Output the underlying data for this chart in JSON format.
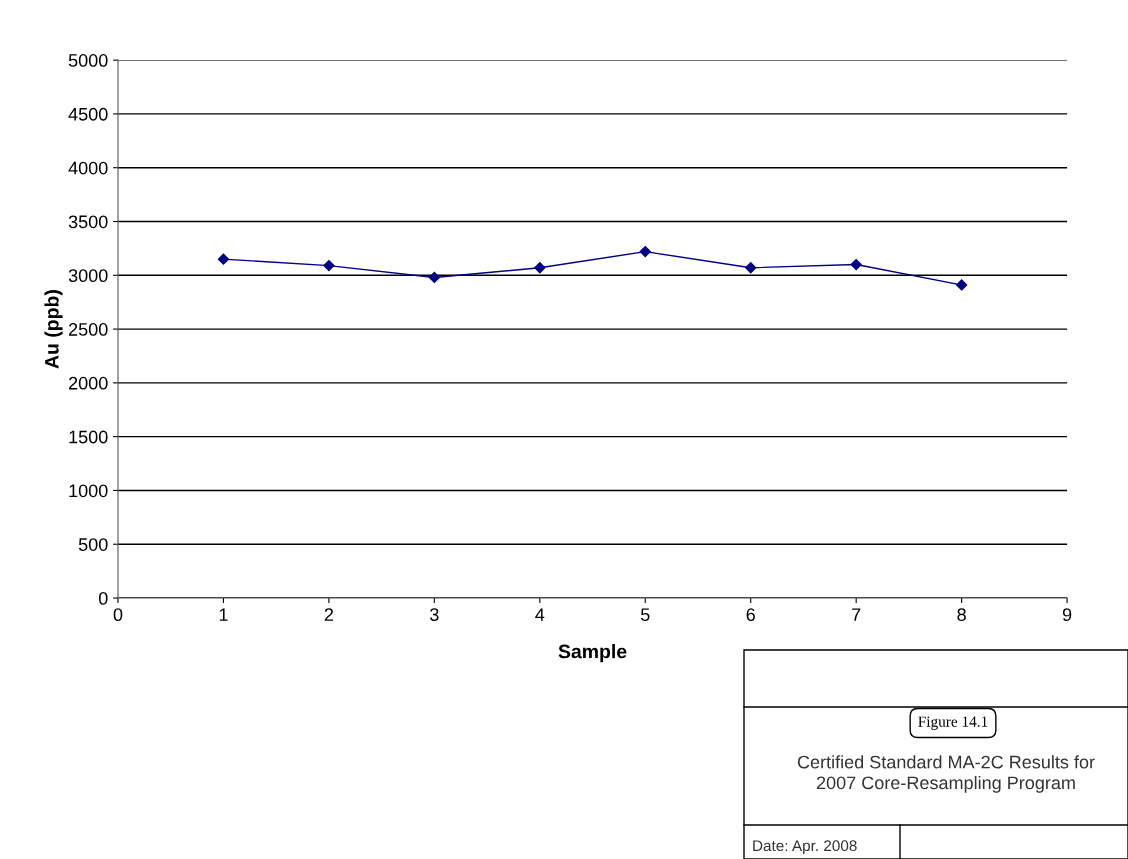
{
  "chart_data": {
    "type": "line",
    "xlabel": "Sample",
    "ylabel": "Au (ppb)",
    "x": [
      1,
      2,
      3,
      4,
      5,
      6,
      7,
      8
    ],
    "series": [
      {
        "color": "#000080",
        "values": [
          3150,
          3090,
          2980,
          3070,
          3220,
          3070,
          3100,
          2910
        ]
      }
    ],
    "xlim": [
      0,
      9
    ],
    "xticks": [
      0,
      1,
      2,
      3,
      4,
      5,
      6,
      7,
      8,
      9
    ],
    "ylim": [
      0,
      5000
    ],
    "yticks": [
      0,
      500,
      1000,
      1500,
      2000,
      2500,
      3000,
      3500,
      4000,
      4500,
      5000
    ],
    "grid": "y",
    "marker": "diamond",
    "line_style": "solid",
    "annotations": [
      "Figure 14.1",
      "Certified Standard MA-2C Results for\n2007 Core-Resampling Program",
      "Date: Apr. 2008"
    ]
  }
}
